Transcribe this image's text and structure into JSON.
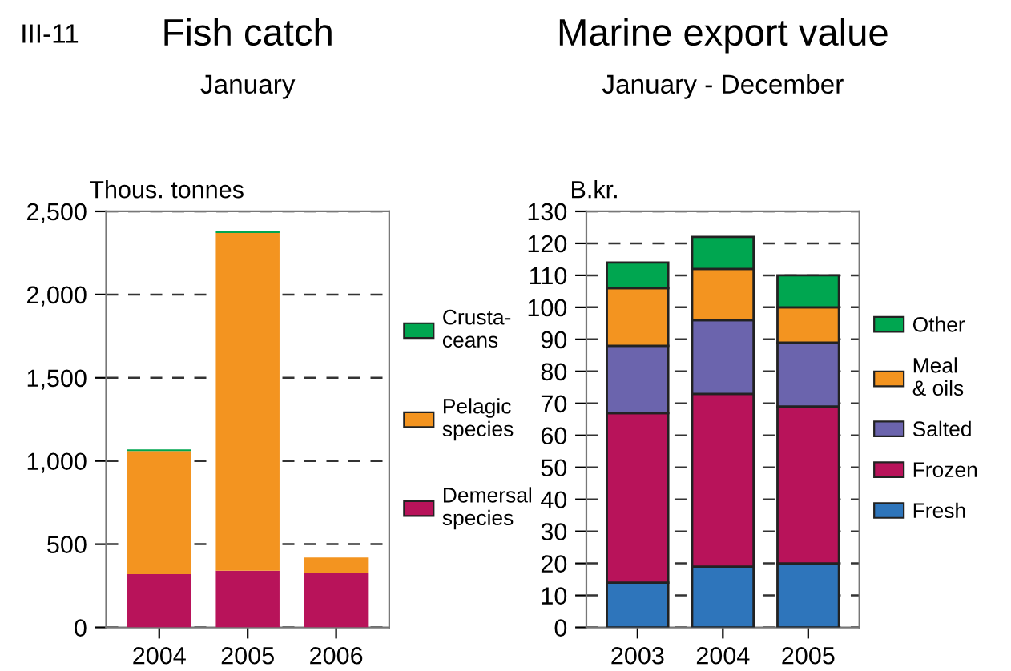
{
  "chart_data": [
    {
      "type": "bar",
      "title": "Fish catch",
      "subtitle": "January",
      "ylabel": "Thous. tonnes",
      "annotations": [
        "III-11"
      ],
      "categories": [
        "2004",
        "2005",
        "2006"
      ],
      "stacked": true,
      "series": [
        {
          "name": "Demersal species",
          "color": "#b8135a",
          "values": [
            320,
            340,
            330
          ]
        },
        {
          "name": "Pelagic species",
          "color": "#f39420",
          "values": [
            740,
            2030,
            90
          ]
        },
        {
          "name": "Crusta-ceans",
          "color": "#00a650",
          "values": [
            10,
            10,
            0
          ]
        }
      ],
      "ylim": [
        0,
        2500
      ],
      "yticks": [
        0,
        {
          "value": 500,
          "label": "500"
        },
        {
          "value": 1000,
          "label": "1,000"
        },
        {
          "value": 1500,
          "label": "1,500"
        },
        {
          "value": 2000,
          "label": "2,000"
        },
        {
          "value": 2500,
          "label": "2,500"
        }
      ],
      "grid": "y",
      "legend": "right"
    },
    {
      "type": "bar",
      "title": "Marine export value",
      "subtitle": "January - December",
      "ylabel": "B.kr.",
      "categories": [
        "2003",
        "2004",
        "2005"
      ],
      "stacked": true,
      "series": [
        {
          "name": "Fresh",
          "color": "#2e75bb",
          "values": [
            14,
            19,
            20
          ]
        },
        {
          "name": "Frozen",
          "color": "#b8135a",
          "values": [
            53,
            54,
            49
          ]
        },
        {
          "name": "Salted",
          "color": "#6b64ad",
          "values": [
            21,
            23,
            20
          ]
        },
        {
          "name": "Meal & oils",
          "color": "#f39420",
          "values": [
            18,
            16,
            11
          ]
        },
        {
          "name": "Other",
          "color": "#00a650",
          "values": [
            8,
            10,
            10
          ]
        }
      ],
      "ylim": [
        0,
        130
      ],
      "yticks": [
        0,
        10,
        20,
        30,
        40,
        50,
        60,
        70,
        80,
        90,
        100,
        110,
        120,
        130
      ],
      "grid": "y",
      "legend": "right"
    }
  ]
}
